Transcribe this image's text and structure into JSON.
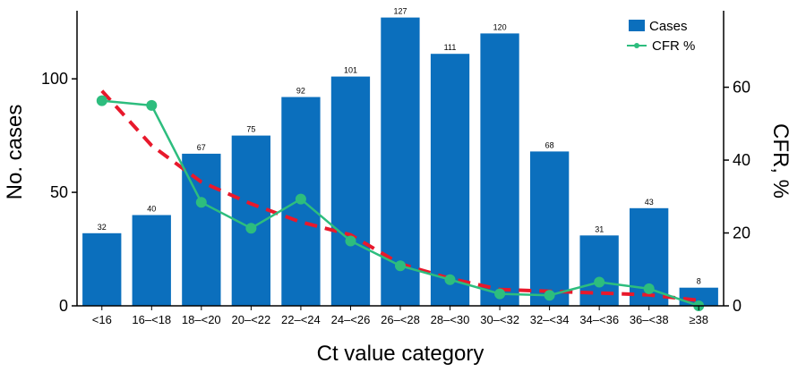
{
  "chart_data": {
    "type": "bar",
    "title": "",
    "xlabel": "Ct value category",
    "ylabel": "No. cases",
    "y2label": "CFR, %",
    "categories": [
      "<16",
      "16–<18",
      "18–<20",
      "20–<22",
      "22–<24",
      "24–<26",
      "26–<28",
      "28–<30",
      "30–<32",
      "32–<34",
      "34–<36",
      "36–<38",
      "≥38"
    ],
    "ylim": [
      0,
      130
    ],
    "y2lim": [
      0,
      81
    ],
    "yticks": [
      0,
      50,
      100
    ],
    "y2ticks": [
      0,
      20,
      40,
      60
    ],
    "series": [
      {
        "name": "Cases",
        "type": "bar",
        "axis": "left",
        "color": "#0b6fbd",
        "values": [
          32,
          40,
          67,
          75,
          92,
          101,
          127,
          111,
          120,
          68,
          31,
          43,
          8
        ]
      },
      {
        "name": "CFR %",
        "type": "line",
        "axis": "right",
        "color": "#2dbd7e",
        "values": [
          56.3,
          55.0,
          28.4,
          21.3,
          29.3,
          17.8,
          11.0,
          7.2,
          3.3,
          2.9,
          6.5,
          4.7,
          0.0
        ]
      },
      {
        "type": "line",
        "style": "dashed",
        "axis": "right",
        "color": "#e8192c",
        "values": [
          59.0,
          44.0,
          34.0,
          28.0,
          23.0,
          19.5,
          11.5,
          7.5,
          4.5,
          4.0,
          3.5,
          3.0,
          1.5
        ]
      }
    ],
    "legend": {
      "position": "top-right",
      "entries": [
        "Cases",
        "CFR %"
      ]
    },
    "grid": false
  }
}
